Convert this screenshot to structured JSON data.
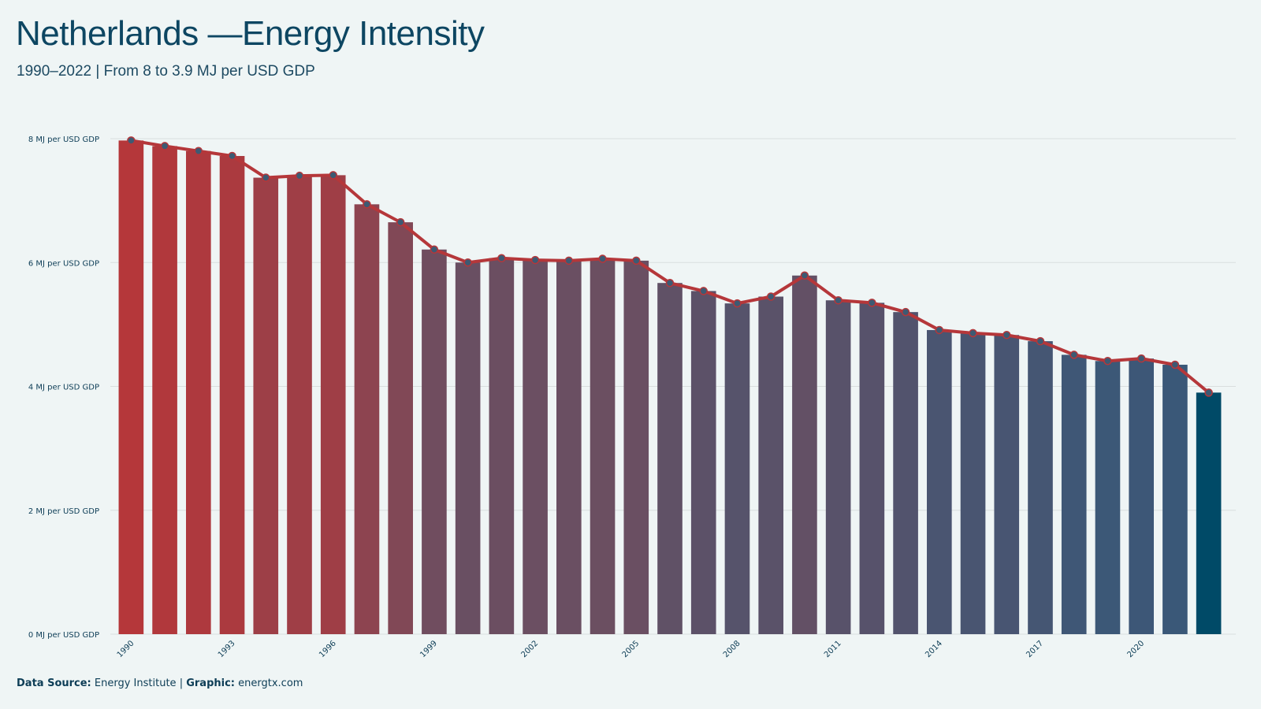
{
  "title": "Netherlands —Energy Intensity",
  "subtitle": "1990–2022 | From 8 to 3.9 MJ per USD GDP",
  "footer": {
    "source_label": "Data Source:",
    "source_value": "Energy Institute",
    "separator": "|",
    "graphic_label": "Graphic:",
    "graphic_value": "energtx.com"
  },
  "colors": {
    "start": "#b5373a",
    "mid": "#6e4e60",
    "end": "#3a5878",
    "last_bar": "#004a67",
    "line": "#b5373a",
    "marker_fill": "#3d5a73",
    "grid": "#d9dede"
  },
  "chart_data": {
    "type": "bar",
    "overlay": "line-with-markers",
    "categories": [
      "1990",
      "1991",
      "1992",
      "1993",
      "1994",
      "1995",
      "1996",
      "1997",
      "1998",
      "1999",
      "2000",
      "2001",
      "2002",
      "2003",
      "2004",
      "2005",
      "2006",
      "2007",
      "2008",
      "2009",
      "2010",
      "2011",
      "2012",
      "2013",
      "2014",
      "2015",
      "2016",
      "2017",
      "2018",
      "2019",
      "2020",
      "2021",
      "2022"
    ],
    "x_tick_labels": [
      "1990",
      "1993",
      "1996",
      "1999",
      "2002",
      "2005",
      "2008",
      "2011",
      "2014",
      "2017",
      "2020"
    ],
    "series": [
      {
        "values": [
          7.97,
          7.88,
          7.8,
          7.72,
          7.37,
          7.4,
          7.41,
          6.94,
          6.65,
          6.21,
          6.0,
          6.07,
          6.04,
          6.03,
          6.06,
          6.03,
          5.67,
          5.54,
          5.34,
          5.45,
          5.79,
          5.39,
          5.35,
          5.2,
          4.91,
          4.86,
          4.83,
          4.73,
          4.51,
          4.41,
          4.45,
          4.35,
          3.9
        ]
      }
    ],
    "y_ticks": [
      0,
      2,
      4,
      6,
      8
    ],
    "y_tick_labels": [
      "0 MJ per USD GDP",
      "2 MJ per USD GDP",
      "4 MJ per USD GDP",
      "6 MJ per USD GDP",
      "8 MJ per USD GDP"
    ],
    "ylim": [
      0,
      8
    ],
    "xlabel": "",
    "ylabel": "",
    "grid": "horizontal",
    "legend": "none"
  }
}
